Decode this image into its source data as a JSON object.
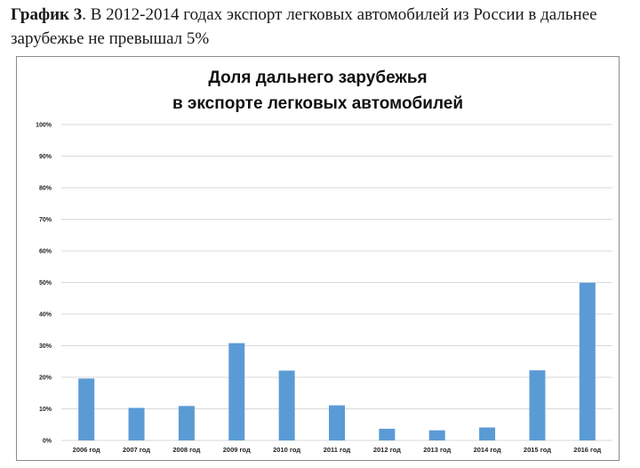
{
  "caption": {
    "label": "График 3",
    "text": ". В 2012-2014 годах экспорт легковых автомобилей из России в дальнее зарубежье не превышал 5%"
  },
  "chart_data": {
    "type": "bar",
    "title_line1": "Доля дальнего зарубежья",
    "title_line2": "в экспорте легковых автомобилей",
    "categories": [
      "2006 год",
      "2007 год",
      "2008 год",
      "2009 год",
      "2010 год",
      "2011 год",
      "2012 год",
      "2013 год",
      "2014 год",
      "2015 год",
      "2016 год"
    ],
    "values": [
      19.6,
      10.3,
      10.9,
      30.8,
      22.1,
      11.1,
      3.7,
      3.2,
      4.1,
      22.2,
      49.9
    ],
    "y_ticks": [
      "0%",
      "10%",
      "20%",
      "30%",
      "40%",
      "50%",
      "60%",
      "70%",
      "80%",
      "90%",
      "100%"
    ],
    "ylim": [
      0,
      100
    ],
    "grid": true,
    "bar_color": "#5b9bd5",
    "grid_color": "#d9d9d9"
  }
}
